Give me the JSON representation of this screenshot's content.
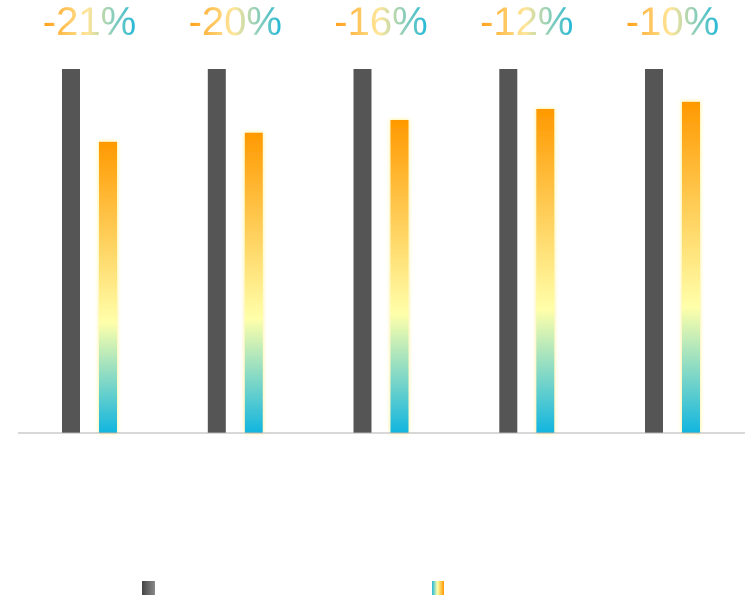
{
  "chart_data": {
    "type": "bar",
    "categories": [
      "",
      "",
      "",
      "",
      ""
    ],
    "series": [
      {
        "values": [
          100,
          100,
          100,
          100,
          100
        ]
      },
      {
        "values": [
          80,
          82.5,
          86,
          89,
          91
        ]
      }
    ],
    "annotations": [
      "-21%",
      "-20%",
      "-16%",
      "-12%",
      "-10%"
    ],
    "title": "",
    "xlabel": "",
    "ylabel": "",
    "ylim": [
      0,
      100
    ],
    "grid": false,
    "legend_position": "bottom",
    "colors": {
      "series_1": "#555555",
      "series_2_top": "#ff9900",
      "series_2_mid": "#ffffaa",
      "series_2_bottom": "#11b5e0",
      "baseline": "#b0b0b0",
      "label_left": "#ffa018",
      "label_right": "#20b8d8"
    }
  }
}
